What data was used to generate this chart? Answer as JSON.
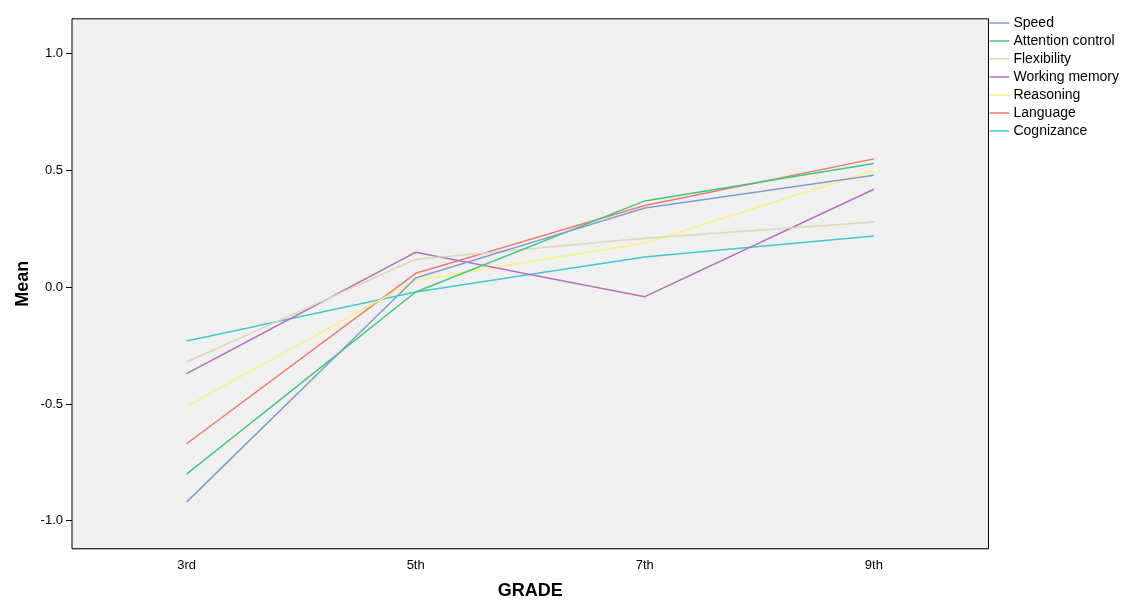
{
  "chart_data": {
    "type": "line",
    "xlabel": "GRADE",
    "ylabel": "Mean",
    "categories": [
      "3rd",
      "5th",
      "7th",
      "9th"
    ],
    "series": [
      {
        "name": "Speed",
        "color": "#7f9fd0",
        "values": [
          -0.92,
          0.04,
          0.34,
          0.48
        ]
      },
      {
        "name": "Attention control",
        "color": "#3ec97a",
        "values": [
          -0.8,
          -0.02,
          0.37,
          0.53
        ]
      },
      {
        "name": "Flexibility",
        "color": "#ddd8b5",
        "values": [
          -0.32,
          0.12,
          0.21,
          0.28
        ]
      },
      {
        "name": "Working memory",
        "color": "#b86fbc",
        "values": [
          -0.37,
          0.15,
          -0.04,
          0.42
        ]
      },
      {
        "name": "Reasoning",
        "color": "#fbf07a",
        "values": [
          -0.51,
          0.03,
          0.19,
          0.5
        ]
      },
      {
        "name": "Language",
        "color": "#f27870",
        "values": [
          -0.67,
          0.06,
          0.35,
          0.55
        ]
      },
      {
        "name": "Cognizance",
        "color": "#3ec8d0",
        "values": [
          -0.23,
          -0.02,
          0.13,
          0.22
        ]
      }
    ],
    "ylim": [
      -1.12,
      1.15
    ],
    "yticks": [
      {
        "value": -1,
        "label": "-1.0"
      },
      {
        "value": -0.5,
        "label": "-0.5"
      },
      {
        "value": 0,
        "label": "0.0"
      },
      {
        "value": 0.5,
        "label": "0.5"
      },
      {
        "value": 1,
        "label": "1.0"
      }
    ],
    "grid": false,
    "legend": "top right",
    "marker": "none",
    "line_style": "solid"
  }
}
